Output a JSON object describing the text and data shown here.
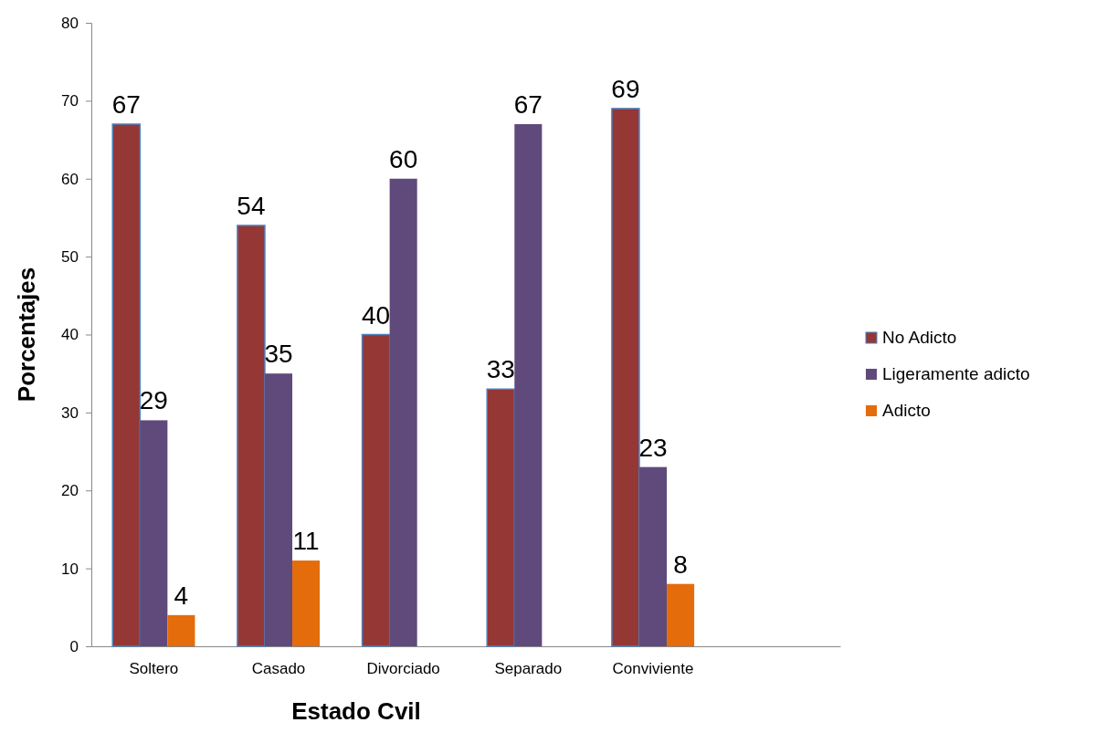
{
  "chart_data": {
    "type": "bar",
    "xlabel": "Estado Cvil",
    "ylabel": "Porcentajes",
    "categories": [
      "Soltero",
      "Casado",
      "Divorciado",
      "Separado",
      "Conviviente",
      null
    ],
    "series": [
      {
        "name": "No Adicto",
        "color": "#953735",
        "values": [
          67,
          54,
          40,
          33,
          69,
          null
        ]
      },
      {
        "name": "Ligeramente adicto",
        "color": "#604a7b",
        "values": [
          29,
          35,
          60,
          67,
          23,
          null
        ]
      },
      {
        "name": "Adicto",
        "color": "#e46c0a",
        "values": [
          4,
          11,
          null,
          null,
          8,
          null
        ]
      }
    ],
    "ylim": [
      0,
      80
    ],
    "yticks": [
      0,
      10,
      20,
      30,
      40,
      50,
      60,
      70,
      80
    ],
    "grid": false,
    "legend": "right",
    "data_labels": true
  }
}
